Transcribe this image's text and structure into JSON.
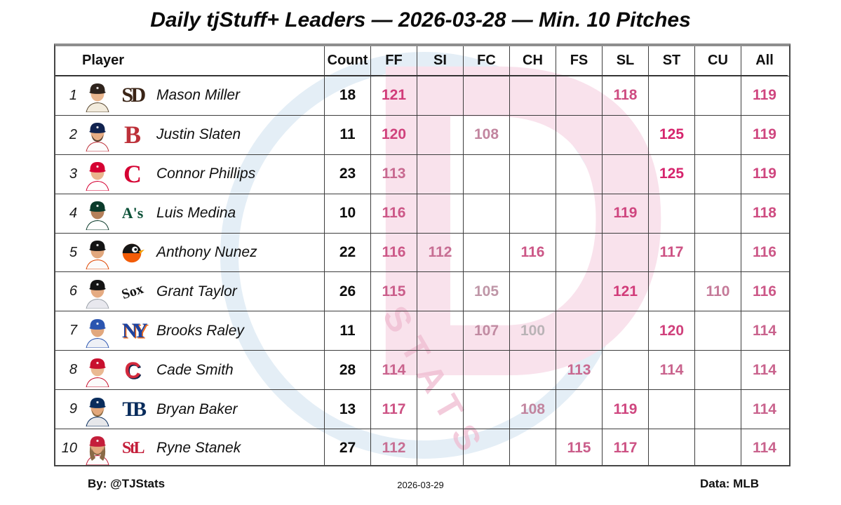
{
  "header": {
    "title": "Daily tjStuff+ Leaders — 2026-03-28 — Min. 10 Pitches"
  },
  "footer": {
    "by": "By: @TJStats",
    "date": "2026-03-29",
    "source": "Data: MLB"
  },
  "watermark": {
    "text": "STATS",
    "letter": "D",
    "pink": "#f9e2ec",
    "blue": "#e4eef6"
  },
  "value_scale": {
    "min": 100,
    "max": 125,
    "low_color": "#b9b3b6",
    "high_color": "#d6246d"
  },
  "chart_data": {
    "type": "table",
    "title": "Daily tjStuff+ Leaders — 2026-03-28 — Min. 10 Pitches",
    "columns": [
      "Player",
      "Count",
      "FF",
      "SI",
      "FC",
      "CH",
      "FS",
      "SL",
      "ST",
      "CU",
      "All"
    ],
    "pitch_columns": [
      "FF",
      "SI",
      "FC",
      "CH",
      "FS",
      "SL",
      "ST",
      "CU",
      "All"
    ],
    "rows": [
      {
        "rank": 1,
        "player": "Mason Miller",
        "team": "Padres",
        "count": 18,
        "FF": 121,
        "SL": 118,
        "All": 119
      },
      {
        "rank": 2,
        "player": "Justin Slaten",
        "team": "Red Sox",
        "count": 11,
        "FF": 120,
        "FC": 108,
        "ST": 125,
        "All": 119
      },
      {
        "rank": 3,
        "player": "Connor Phillips",
        "team": "Reds",
        "count": 23,
        "FF": 113,
        "ST": 125,
        "All": 119
      },
      {
        "rank": 4,
        "player": "Luis Medina",
        "team": "Athletics",
        "count": 10,
        "FF": 116,
        "SL": 119,
        "All": 118
      },
      {
        "rank": 5,
        "player": "Anthony Nunez",
        "team": "Orioles",
        "count": 22,
        "FF": 116,
        "SI": 112,
        "CH": 116,
        "ST": 117,
        "All": 116
      },
      {
        "rank": 6,
        "player": "Grant Taylor",
        "team": "White Sox",
        "count": 26,
        "FF": 115,
        "FC": 105,
        "SL": 121,
        "CU": 110,
        "All": 116
      },
      {
        "rank": 7,
        "player": "Brooks Raley",
        "team": "Mets",
        "count": 11,
        "FC": 107,
        "CH": 100,
        "ST": 120,
        "All": 114
      },
      {
        "rank": 8,
        "player": "Cade Smith",
        "team": "Guardians",
        "count": 28,
        "FF": 114,
        "FS": 113,
        "ST": 114,
        "All": 114
      },
      {
        "rank": 9,
        "player": "Bryan Baker",
        "team": "Rays",
        "count": 13,
        "FF": 117,
        "CH": 108,
        "SL": 119,
        "All": 114
      },
      {
        "rank": 10,
        "player": "Ryne Stanek",
        "team": "Cardinals",
        "count": 27,
        "FF": 112,
        "FS": 115,
        "SL": 117,
        "All": 114
      }
    ]
  },
  "team_styles": [
    {
      "slug": "padres",
      "logo": {
        "kind": "text",
        "text": "SD",
        "color": "#3a2416",
        "size": 30,
        "family": "serif",
        "spacing": "-0.12em"
      },
      "avatar": {
        "cap": "#2f241d",
        "skin": "#e9b68e",
        "hair": "#c9a267",
        "beard": false,
        "longhair": false,
        "jersey": "#f3ecdd",
        "accent": "#5a4a32"
      }
    },
    {
      "slug": "redsox",
      "logo": {
        "kind": "text",
        "text": "B",
        "color": "#bd3039",
        "size": 36,
        "family": "serif"
      },
      "avatar": {
        "cap": "#11234f",
        "skin": "#e6ad85",
        "hair": "#5a4230",
        "beard": true,
        "longhair": false,
        "jersey": "#fdfdfd",
        "accent": "#bd3039"
      }
    },
    {
      "slug": "reds",
      "logo": {
        "kind": "text",
        "text": "C",
        "color": "#d50032",
        "size": 36,
        "family": "serif"
      },
      "avatar": {
        "cap": "#d50032",
        "skin": "#eab58d",
        "hair": "#3a2c22",
        "beard": false,
        "longhair": false,
        "jersey": "#ffffff",
        "accent": "#d50032"
      }
    },
    {
      "slug": "athletics",
      "logo": {
        "kind": "text",
        "text": "A's",
        "color": "#0b5137",
        "size": 22,
        "family": "serif"
      },
      "avatar": {
        "cap": "#0b3b2b",
        "skin": "#b5805a",
        "hair": "#1e1a16",
        "beard": false,
        "longhair": false,
        "jersey": "#ffffff",
        "accent": "#0b3b2b"
      }
    },
    {
      "slug": "orioles",
      "logo": {
        "kind": "bird",
        "body": "#f25c07",
        "head": "#161616",
        "beak": "#f7a000"
      },
      "avatar": {
        "cap": "#141414",
        "skin": "#e2a87e",
        "hair": "#2c2620",
        "beard": false,
        "longhair": false,
        "jersey": "#fbfbfb",
        "accent": "#df4601"
      }
    },
    {
      "slug": "whitesox",
      "logo": {
        "kind": "text",
        "text": "Sox",
        "color": "#141414",
        "size": 20,
        "family": "serif",
        "rotate": -18
      },
      "avatar": {
        "cap": "#141414",
        "skin": "#e5ab82",
        "hair": "#3c3028",
        "beard": false,
        "longhair": false,
        "jersey": "#e8e8ee",
        "accent": "#9aa0a8"
      }
    },
    {
      "slug": "mets",
      "logo": {
        "kind": "text",
        "text": "NY",
        "color": "#1d43a0",
        "size": 30,
        "family": "serif",
        "spacing": "-0.22em",
        "shadow": "1.5px 1.5px 0 #f06511"
      },
      "avatar": {
        "cap": "#2b55b0",
        "skin": "#e2a87e",
        "hair": "#4a3a2c",
        "beard": false,
        "longhair": false,
        "jersey": "#eef0f6",
        "accent": "#2b55b0"
      }
    },
    {
      "slug": "guardians",
      "logo": {
        "kind": "text",
        "text": "C",
        "color": "#d3293c",
        "size": 32,
        "family": "sans",
        "shadow": "1.5px 1.5px 0 #0f2148"
      },
      "avatar": {
        "cap": "#c8102e",
        "skin": "#eab992",
        "hair": "#4a382a",
        "beard": false,
        "longhair": false,
        "jersey": "#fbfbfb",
        "accent": "#c8102e"
      }
    },
    {
      "slug": "rays",
      "logo": {
        "kind": "text",
        "text": "TB",
        "color": "#092c5c",
        "size": 30,
        "family": "serif",
        "spacing": "-0.18em"
      },
      "avatar": {
        "cap": "#092c5c",
        "skin": "#e3a87c",
        "hair": "#8a6a42",
        "beard": true,
        "longhair": false,
        "jersey": "#e6e7ea",
        "accent": "#092c5c"
      }
    },
    {
      "slug": "cardinals",
      "logo": {
        "kind": "text",
        "text": "StL",
        "color": "#c41e3a",
        "size": 24,
        "family": "serif",
        "spacing": "-0.1em"
      },
      "avatar": {
        "cap": "#c41e3a",
        "skin": "#e2a87e",
        "hair": "#8a6a46",
        "beard": true,
        "longhair": true,
        "jersey": "#fdfdfd",
        "accent": "#c41e3a"
      }
    }
  ]
}
